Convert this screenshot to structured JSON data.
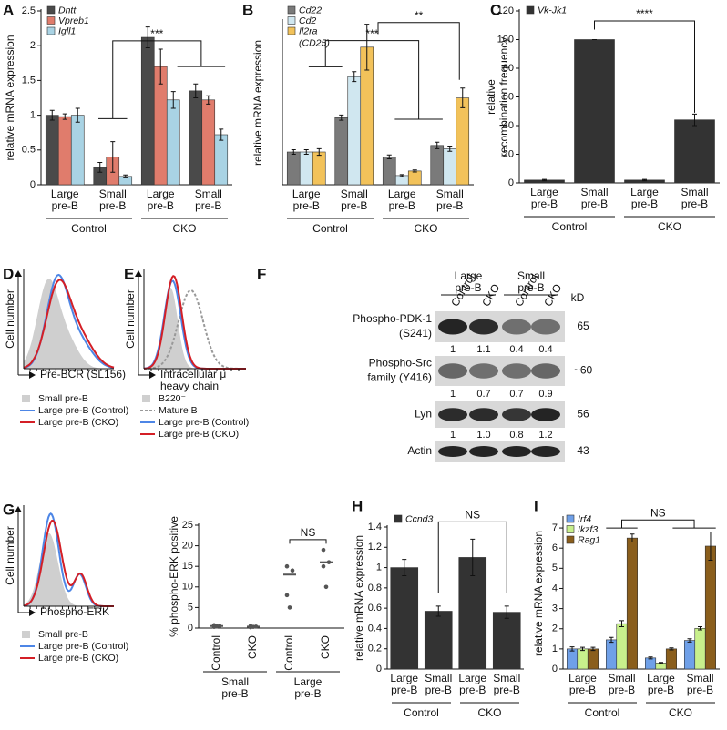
{
  "chart_data": [
    {
      "type": "bar",
      "panel": "A",
      "ylabel": "relative mRNA expression",
      "categories": [
        "Large pre-B",
        "Small pre-B",
        "Large pre-B",
        "Small pre-B"
      ],
      "groups": [
        "Control",
        "CKO"
      ],
      "series": [
        {
          "name": "Dntt",
          "color": "#4a4a4a",
          "values": [
            1.0,
            0.25,
            2.12,
            1.35
          ],
          "errors": [
            0.07,
            0.07,
            0.15,
            0.1
          ]
        },
        {
          "name": "Vpreb1",
          "color": "#e07c6c",
          "values": [
            0.98,
            0.4,
            1.7,
            1.22
          ],
          "errors": [
            0.04,
            0.22,
            0.25,
            0.06
          ]
        },
        {
          "name": "Igll1",
          "color": "#a9d3e4",
          "values": [
            1.0,
            0.12,
            1.22,
            0.72
          ],
          "errors": [
            0.1,
            0.02,
            0.12,
            0.08
          ]
        }
      ],
      "ylim": [
        0,
        2.5
      ],
      "yticks": [
        0,
        0.5,
        1,
        1.5,
        2,
        2.5
      ],
      "annotations": [
        "***"
      ]
    },
    {
      "type": "bar",
      "panel": "B",
      "ylabel": "relative mRNA expression",
      "categories": [
        "Large pre-B",
        "Small pre-B",
        "Large pre-B",
        "Small pre-B"
      ],
      "groups": [
        "Control",
        "CKO"
      ],
      "series": [
        {
          "name": "Cd22",
          "color": "#7a7a7a",
          "values": [
            1.0,
            2.05,
            0.85,
            1.2
          ],
          "errors": [
            0.07,
            0.08,
            0.06,
            0.1
          ]
        },
        {
          "name": "Cd2",
          "color": "#d0e7f0",
          "values": [
            1.0,
            3.3,
            0.28,
            1.1
          ],
          "errors": [
            0.07,
            0.15,
            0.03,
            0.08
          ]
        },
        {
          "name": "Il2ra (CD25)",
          "color": "#f2c25a",
          "values": [
            1.0,
            4.2,
            0.42,
            2.65
          ],
          "errors": [
            0.1,
            0.7,
            0.03,
            0.3
          ]
        }
      ],
      "ylim": [
        0,
        5
      ],
      "annotations": [
        "***",
        "**"
      ]
    },
    {
      "type": "bar",
      "panel": "C",
      "ylabel": [
        "relative",
        "recombination frequency"
      ],
      "categories": [
        "Large pre-B",
        "Small pre-B",
        "Large pre-B",
        "Small pre-B"
      ],
      "groups": [
        "Control",
        "CKO"
      ],
      "series": [
        {
          "name": "Vk-Jk1",
          "color": "#333333",
          "values": [
            2,
            100,
            2,
            44
          ],
          "errors": [
            0.5,
            0,
            0.5,
            4
          ]
        }
      ],
      "ylim": [
        0,
        120
      ],
      "yticks": [
        0,
        20,
        40,
        60,
        80,
        100,
        120
      ],
      "annotations": [
        "****"
      ]
    },
    {
      "type": "dot",
      "ylabel": "% phospho-ERK positive",
      "categories": [
        "Control",
        "CKO",
        "Control",
        "CKO"
      ],
      "groups": [
        "Small pre-B",
        "Large pre-B"
      ],
      "points": [
        [
          0.3,
          0.5,
          0.7,
          0.4
        ],
        [
          0.2,
          0.35,
          0.5,
          0.3
        ],
        [
          15,
          14,
          8,
          5
        ],
        [
          19,
          16,
          15,
          10
        ]
      ],
      "medians": [
        0.5,
        0.35,
        13,
        16
      ],
      "color": "#555555",
      "ylim": [
        0,
        25
      ],
      "yticks": [
        0,
        5,
        10,
        15,
        20,
        25
      ],
      "annotations": [
        "NS"
      ]
    },
    {
      "type": "bar",
      "panel": "H",
      "ylabel": "relative mRNA expression",
      "categories": [
        "Large pre-B",
        "Small pre-B",
        "Large pre-B",
        "Small pre-B"
      ],
      "groups": [
        "Control",
        "CKO"
      ],
      "series": [
        {
          "name": "Ccnd3",
          "color": "#333333",
          "values": [
            1.0,
            0.57,
            1.1,
            0.56
          ],
          "errors": [
            0.08,
            0.05,
            0.18,
            0.06
          ]
        }
      ],
      "ylim": [
        0,
        1.4
      ],
      "yticks": [
        0,
        0.2,
        0.4,
        0.6,
        0.8,
        1,
        1.2,
        1.4
      ],
      "annotations": [
        "NS"
      ]
    },
    {
      "type": "bar",
      "panel": "I",
      "ylabel": "relative mRNA expression",
      "categories": [
        "Large pre-B",
        "Small pre-B",
        "Large pre-B",
        "Small pre-B"
      ],
      "groups": [
        "Control",
        "CKO"
      ],
      "series": [
        {
          "name": "Irf4",
          "color": "#6fa0e8",
          "values": [
            1.0,
            1.45,
            0.55,
            1.42
          ],
          "errors": [
            0.1,
            0.12,
            0.05,
            0.08
          ]
        },
        {
          "name": "Ikzf3",
          "color": "#c8f08c",
          "values": [
            1.0,
            2.25,
            0.3,
            2.02
          ],
          "errors": [
            0.08,
            0.15,
            0.03,
            0.08
          ]
        },
        {
          "name": "Rag1",
          "color": "#8a5e1c",
          "values": [
            1.0,
            6.5,
            1.0,
            6.1
          ],
          "errors": [
            0.08,
            0.2,
            0.05,
            0.7
          ]
        }
      ],
      "ylim": [
        0,
        7.5
      ],
      "yticks": [
        0,
        1,
        2,
        3,
        4,
        5,
        6,
        7
      ],
      "annotations": [
        "NS"
      ]
    }
  ],
  "flow_panels": [
    {
      "panel": "D",
      "ylabel": "Cell number",
      "xlabel": [
        "Pre-BCR (SL156)"
      ],
      "legend": [
        "Small pre-B",
        "Large pre-B (Control)",
        "Large pre-B (CKO)"
      ]
    },
    {
      "panel": "E",
      "ylabel": "Cell number",
      "xlabel": [
        "Intracellular μ",
        "heavy chain"
      ],
      "legend": [
        "B220⁻",
        "Mature B",
        "Large pre-B (Control)",
        "Large pre-B (CKO)"
      ]
    },
    {
      "panel": "G",
      "ylabel": "Cell number",
      "xlabel": [
        "Phospho-ERK"
      ],
      "legend": [
        "Small pre-B",
        "Large pre-B (Control)",
        "Large pre-B (CKO)"
      ]
    }
  ],
  "blot": {
    "panel": "F",
    "groups": [
      "Large pre-B",
      "Small pre-B"
    ],
    "lanes": [
      "Control",
      "CKO",
      "Control",
      "CKO"
    ],
    "unit": "kD",
    "rows": [
      {
        "label": [
          "Phospho-PDK-1",
          "(S241)"
        ],
        "size": "65",
        "quant": [
          "1",
          "1.1",
          "0.4",
          "0.4"
        ]
      },
      {
        "label": [
          "Phospho-Src",
          "family (Y416)"
        ],
        "size": "~60",
        "quant": [
          "1",
          "0.7",
          "0.7",
          "0.9"
        ]
      },
      {
        "label": [
          "Lyn"
        ],
        "size": "56",
        "quant": [
          "1",
          "1.0",
          "0.8",
          "1.2"
        ]
      },
      {
        "label": [
          "Actin"
        ],
        "size": "43"
      }
    ]
  }
}
